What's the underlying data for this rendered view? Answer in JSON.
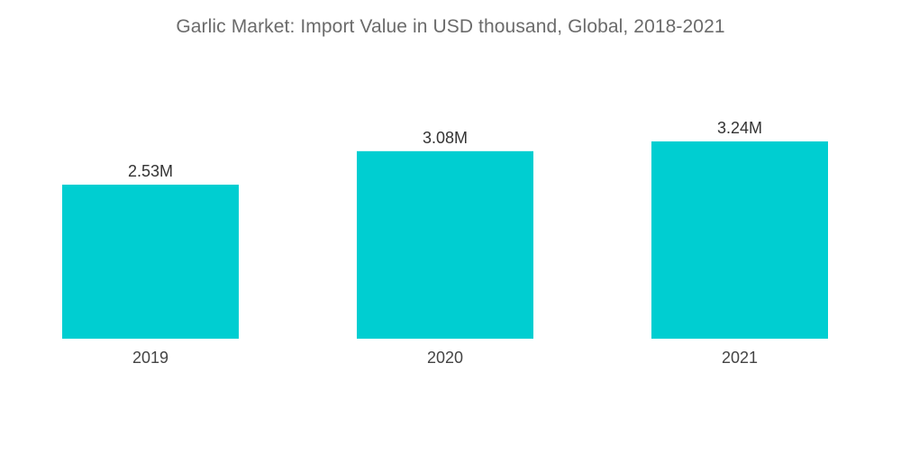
{
  "chart_data": {
    "type": "bar",
    "title": "Garlic Market: Import Value in USD thousand, Global, 2018-2021",
    "categories": [
      "2019",
      "2020",
      "2021"
    ],
    "values": [
      2.53,
      3.08,
      3.24
    ],
    "value_labels": [
      "2.53M",
      "3.08M",
      "3.24M"
    ],
    "unit": "M",
    "xlabel": "",
    "ylabel": "",
    "ylim": [
      0,
      3.24
    ],
    "grid": false,
    "legend": "none",
    "bar_color": "#00CED1"
  }
}
